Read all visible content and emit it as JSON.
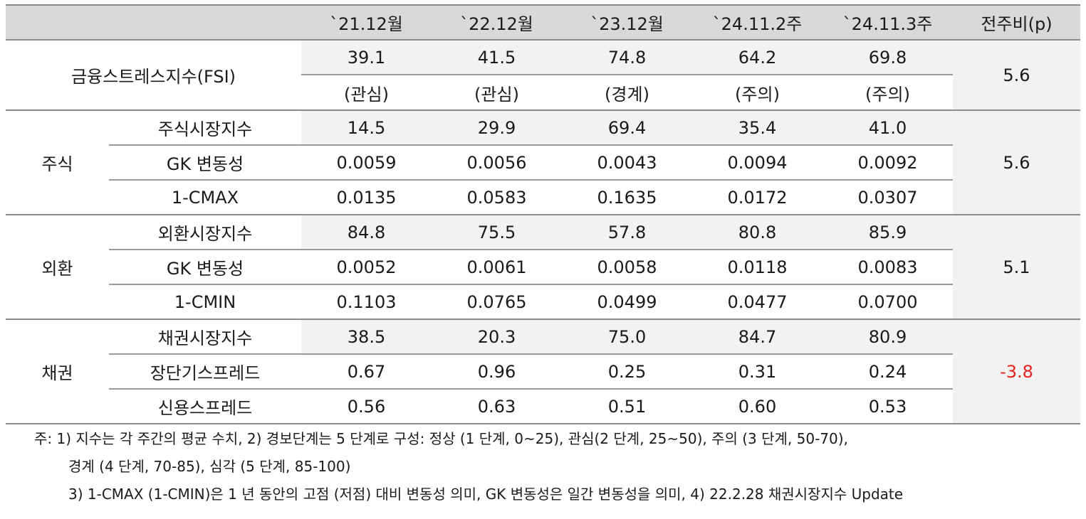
{
  "header": [
    "",
    "`21.12월",
    "`22.12월",
    "`23.12월",
    "`24.11.2주",
    "`24.11.3주",
    "전주비(p)"
  ],
  "fsi": {
    "label": "금융스트레스지수(FSI)",
    "values": [
      "39.1",
      "41.5",
      "74.8",
      "64.2",
      "69.8"
    ],
    "levels": [
      "(관심)",
      "(관심)",
      "(경계)",
      "(주의)",
      "(주의)"
    ],
    "change": "5.6"
  },
  "sections": [
    {
      "label": "주식",
      "change": "5.6",
      "rows": [
        {
          "name": "주식시장지수",
          "values": [
            "14.5",
            "29.9",
            "69.4",
            "35.4",
            "41.0"
          ]
        },
        {
          "name": "GK 변동성",
          "values": [
            "0.0059",
            "0.0056",
            "0.0043",
            "0.0094",
            "0.0092"
          ]
        },
        {
          "name": "1-CMAX",
          "values": [
            "0.0135",
            "0.0583",
            "0.1635",
            "0.0172",
            "0.0307"
          ]
        }
      ]
    },
    {
      "label": "외환",
      "change": "5.1",
      "rows": [
        {
          "name": "외환시장지수",
          "values": [
            "84.8",
            "75.5",
            "57.8",
            "80.8",
            "85.9"
          ]
        },
        {
          "name": "GK 변동성",
          "values": [
            "0.0052",
            "0.0061",
            "0.0058",
            "0.0118",
            "0.0083"
          ]
        },
        {
          "name": "1-CMIN",
          "values": [
            "0.1103",
            "0.0765",
            "0.0499",
            "0.0477",
            "0.0700"
          ]
        }
      ]
    },
    {
      "label": "채권",
      "change": "-3.8",
      "rows": [
        {
          "name": "채권시장지수",
          "values": [
            "38.5",
            "20.3",
            "75.0",
            "84.7",
            "80.9"
          ]
        },
        {
          "name": "장단기스프레드",
          "values": [
            "0.67",
            "0.96",
            "0.25",
            "0.31",
            "0.24"
          ]
        },
        {
          "name": "신용스프레드",
          "values": [
            "0.56",
            "0.63",
            "0.51",
            "0.60",
            "0.53"
          ]
        }
      ]
    }
  ],
  "notes": [
    "주: 1) 지수는 각 주간의 평균 수치, 2) 경보단계는 5 단계로 구성: 정상 (1 단계, 0~25), 관심(2 단계, 25~50), 주의 (3 단계, 50-70),",
    "경계 (4 단계, 70-85), 심각 (5 단계, 85-100)",
    "3) 1-CMAX (1-CMIN)은 1 년 동안의 고점 (저점) 대비 변동성 의미, GK 변동성은 일간 변동성을 의미, 4) 22.2.28 채권시장지수 Update"
  ],
  "colors": {
    "header_bg": "#d9d9d9",
    "highlight_bg": "#f2f2f2",
    "border": "#8c8c8c",
    "negative": "#e8231e"
  }
}
